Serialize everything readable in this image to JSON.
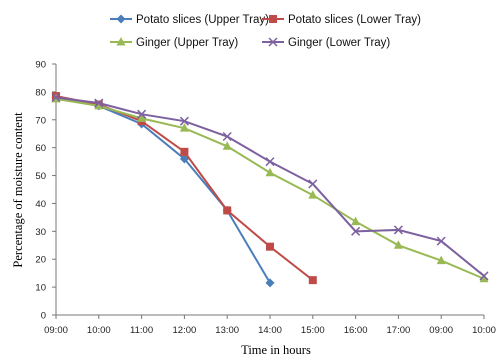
{
  "chart_data": {
    "type": "line",
    "title": "",
    "xlabel": "Time in hours",
    "ylabel": "Percentage of moisture content",
    "categories": [
      "09:00",
      "10:00",
      "11:00",
      "12:00",
      "13:00",
      "14:00",
      "15:00",
      "16:00",
      "17:00",
      "09:00",
      "10:00"
    ],
    "ylim": [
      0,
      90
    ],
    "yticks": [
      0,
      10,
      20,
      30,
      40,
      50,
      60,
      70,
      80,
      90
    ],
    "grid": false,
    "legend_position": "top",
    "series": [
      {
        "name": "Potato slices (Upper Tray)",
        "color": "#4a7ebb",
        "marker": "diamond",
        "values": [
          78,
          75,
          68.5,
          56,
          37.5,
          11.5,
          null,
          null,
          null,
          null,
          null
        ]
      },
      {
        "name": "Potato slices (Lower Tray)",
        "color": "#be4b48",
        "marker": "square",
        "values": [
          78.5,
          75.5,
          69.5,
          58.5,
          37.5,
          24.5,
          12.5,
          null,
          null,
          null,
          null
        ]
      },
      {
        "name": "Ginger (Upper Tray)",
        "color": "#98b954",
        "marker": "triangle",
        "values": [
          77.5,
          75,
          70.5,
          67,
          60.5,
          51,
          43,
          33.5,
          25,
          19.5,
          13
        ]
      },
      {
        "name": "Ginger (Lower Tray)",
        "color": "#7d60a0",
        "marker": "x",
        "values": [
          78,
          76,
          72,
          69.5,
          64,
          55,
          47,
          30,
          30.5,
          26.5,
          14
        ]
      }
    ]
  }
}
